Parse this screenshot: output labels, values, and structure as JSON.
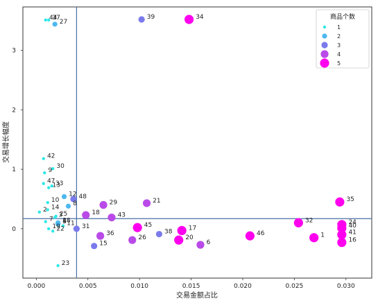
{
  "chart_data": {
    "type": "scatter",
    "xlabel": "交易金额占比",
    "ylabel": "交易增长幅度",
    "xlim": [
      -0.0013,
      0.0325
    ],
    "ylim": [
      -0.83,
      3.73
    ],
    "x_ticks": [
      0.0,
      0.005,
      0.01,
      0.015,
      0.02,
      0.025,
      0.03
    ],
    "x_tick_labels": [
      "0.000",
      "0.005",
      "0.010",
      "0.015",
      "0.020",
      "0.025",
      "0.030"
    ],
    "y_ticks": [
      0,
      1,
      2,
      3
    ],
    "y_tick_labels": [
      "0",
      "1",
      "2",
      "3"
    ],
    "reference_lines": {
      "x": 0.0039,
      "y": 0.17
    },
    "legend": {
      "title": "商品个数",
      "placement": "top-right",
      "entries": [
        {
          "label": "1",
          "value": 1,
          "color": "#2ee8e8"
        },
        {
          "label": "2",
          "value": 2,
          "color": "#4cb8f0"
        },
        {
          "label": "3",
          "value": 3,
          "color": "#7a7aec"
        },
        {
          "label": "4",
          "value": 4,
          "color": "#b94ae8"
        },
        {
          "label": "5",
          "value": 5,
          "color": "#ff00ee"
        }
      ]
    },
    "points": [
      {
        "label": "1",
        "x": 0.0269,
        "y": -0.15,
        "count": 5
      },
      {
        "label": "2",
        "x": 0.0003,
        "y": 0.28,
        "count": 1
      },
      {
        "label": "3",
        "x": 0.0018,
        "y": 0.19,
        "count": 1
      },
      {
        "label": "4",
        "x": 0.0022,
        "y": 0.09,
        "count": 1
      },
      {
        "label": "5",
        "x": 0.0021,
        "y": 0.08,
        "count": 2
      },
      {
        "label": "6",
        "x": 0.0159,
        "y": -0.27,
        "count": 4
      },
      {
        "label": "7",
        "x": 0.0009,
        "y": 0.12,
        "count": 1
      },
      {
        "label": "8",
        "x": 0.0031,
        "y": 0.38,
        "count": 2
      },
      {
        "label": "9",
        "x": 0.0008,
        "y": 0.94,
        "count": 1
      },
      {
        "label": "10",
        "x": 0.0011,
        "y": 0.44,
        "count": 1
      },
      {
        "label": "11",
        "x": 0.0026,
        "y": 0.05,
        "count": 1
      },
      {
        "label": "12",
        "x": 0.0027,
        "y": 0.54,
        "count": 2
      },
      {
        "label": "13",
        "x": 0.0012,
        "y": 0.69,
        "count": 1
      },
      {
        "label": "14",
        "x": 0.0011,
        "y": 0.32,
        "count": 1
      },
      {
        "label": "15",
        "x": 0.0056,
        "y": -0.29,
        "count": 3
      },
      {
        "label": "16",
        "x": 0.0296,
        "y": -0.23,
        "count": 5
      },
      {
        "label": "17",
        "x": 0.0141,
        "y": -0.03,
        "count": 5
      },
      {
        "label": "18",
        "x": 0.0048,
        "y": 0.23,
        "count": 4
      },
      {
        "label": "19",
        "x": 0.0012,
        "y": 0.0,
        "count": 1
      },
      {
        "label": "20",
        "x": 0.0138,
        "y": -0.19,
        "count": 5
      },
      {
        "label": "21",
        "x": 0.0107,
        "y": 0.43,
        "count": 4
      },
      {
        "label": "22",
        "x": 0.0016,
        "y": -0.04,
        "count": 1
      },
      {
        "label": "23",
        "x": 0.0021,
        "y": -0.62,
        "count": 1
      },
      {
        "label": "24",
        "x": 0.0296,
        "y": 0.07,
        "count": 5
      },
      {
        "label": "25",
        "x": 0.0019,
        "y": 0.21,
        "count": 1
      },
      {
        "label": "26",
        "x": 0.0093,
        "y": -0.19,
        "count": 4
      },
      {
        "label": "27",
        "x": 0.0018,
        "y": 3.44,
        "count": 2
      },
      {
        "label": "28",
        "x": 0.0021,
        "y": 0.1,
        "count": 2
      },
      {
        "label": "29",
        "x": 0.0065,
        "y": 0.4,
        "count": 4
      },
      {
        "label": "30",
        "x": 0.0016,
        "y": 1.01,
        "count": 1
      },
      {
        "label": "31",
        "x": 0.0039,
        "y": 0.0,
        "count": 3
      },
      {
        "label": "32",
        "x": 0.0254,
        "y": 0.1,
        "count": 5
      },
      {
        "label": "33",
        "x": 0.0015,
        "y": 0.72,
        "count": 1
      },
      {
        "label": "34",
        "x": 0.0148,
        "y": 3.52,
        "count": 5
      },
      {
        "label": "35",
        "x": 0.0294,
        "y": 0.45,
        "count": 5
      },
      {
        "label": "36",
        "x": 0.0062,
        "y": -0.12,
        "count": 4
      },
      {
        "label": "37",
        "x": 0.0012,
        "y": 3.51,
        "count": 1
      },
      {
        "label": "38",
        "x": 0.0119,
        "y": -0.09,
        "count": 3
      },
      {
        "label": "39",
        "x": 0.0102,
        "y": 3.52,
        "count": 3
      },
      {
        "label": "40",
        "x": 0.0296,
        "y": 0.01,
        "count": 5
      },
      {
        "label": "41",
        "x": 0.0296,
        "y": -0.1,
        "count": 5
      },
      {
        "label": "42",
        "x": 0.0007,
        "y": 1.18,
        "count": 1
      },
      {
        "label": "43",
        "x": 0.0073,
        "y": 0.19,
        "count": 4
      },
      {
        "label": "44",
        "x": 0.0009,
        "y": 3.51,
        "count": 1
      },
      {
        "label": "45",
        "x": 0.0098,
        "y": 0.02,
        "count": 5
      },
      {
        "label": "46",
        "x": 0.0207,
        "y": -0.12,
        "count": 5
      },
      {
        "label": "47",
        "x": 0.0007,
        "y": 0.76,
        "count": 1
      },
      {
        "label": "48",
        "x": 0.0036,
        "y": 0.5,
        "count": 3
      }
    ]
  }
}
